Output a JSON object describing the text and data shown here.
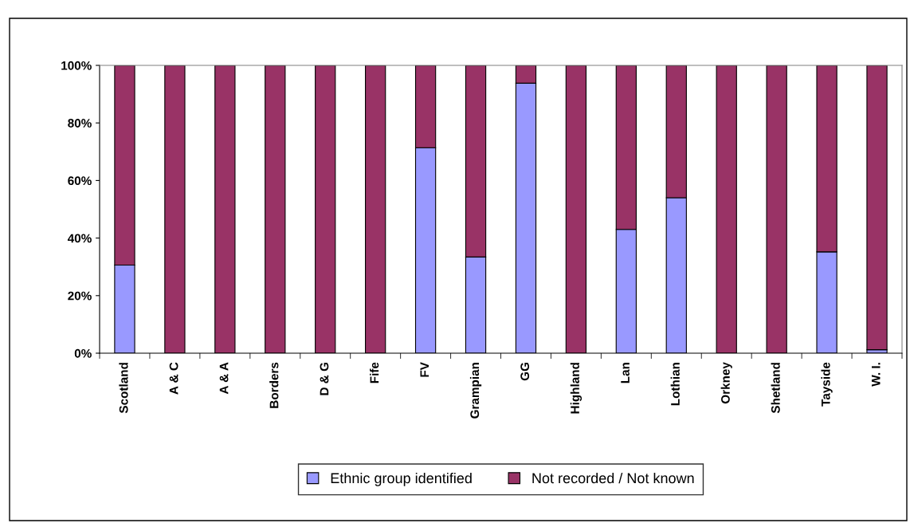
{
  "chart_data": {
    "type": "bar",
    "stacked": true,
    "categories": [
      "Scotland",
      "A & C",
      "A & A",
      "Borders",
      "D & G",
      "Fife",
      "FV",
      "Grampian",
      "GG",
      "Highland",
      "Lan",
      "Lothian",
      "Orkney",
      "Shetland",
      "Tayside",
      "W. I."
    ],
    "series": [
      {
        "name": "Ethnic group identified",
        "color": "#9999ff",
        "values": [
          30.6,
          0,
          0,
          0,
          0,
          0,
          71.4,
          33.4,
          93.8,
          0,
          43.0,
          54.0,
          0,
          0,
          35.2,
          1.2
        ]
      },
      {
        "name": "Not recorded / Not known",
        "color": "#993366",
        "values": [
          69.4,
          100,
          100,
          100,
          100,
          100,
          28.6,
          66.6,
          6.2,
          100,
          57.0,
          46.0,
          100,
          100,
          64.8,
          98.8
        ]
      }
    ],
    "ylim": [
      0,
      100
    ],
    "yticks": [
      {
        "value": 0,
        "label": "0%"
      },
      {
        "value": 20,
        "label": "20%"
      },
      {
        "value": 40,
        "label": "40%"
      },
      {
        "value": 60,
        "label": "60%"
      },
      {
        "value": 80,
        "label": "80%"
      },
      {
        "value": 100,
        "label": "100%"
      }
    ],
    "grid": false,
    "legend": "bottom"
  }
}
